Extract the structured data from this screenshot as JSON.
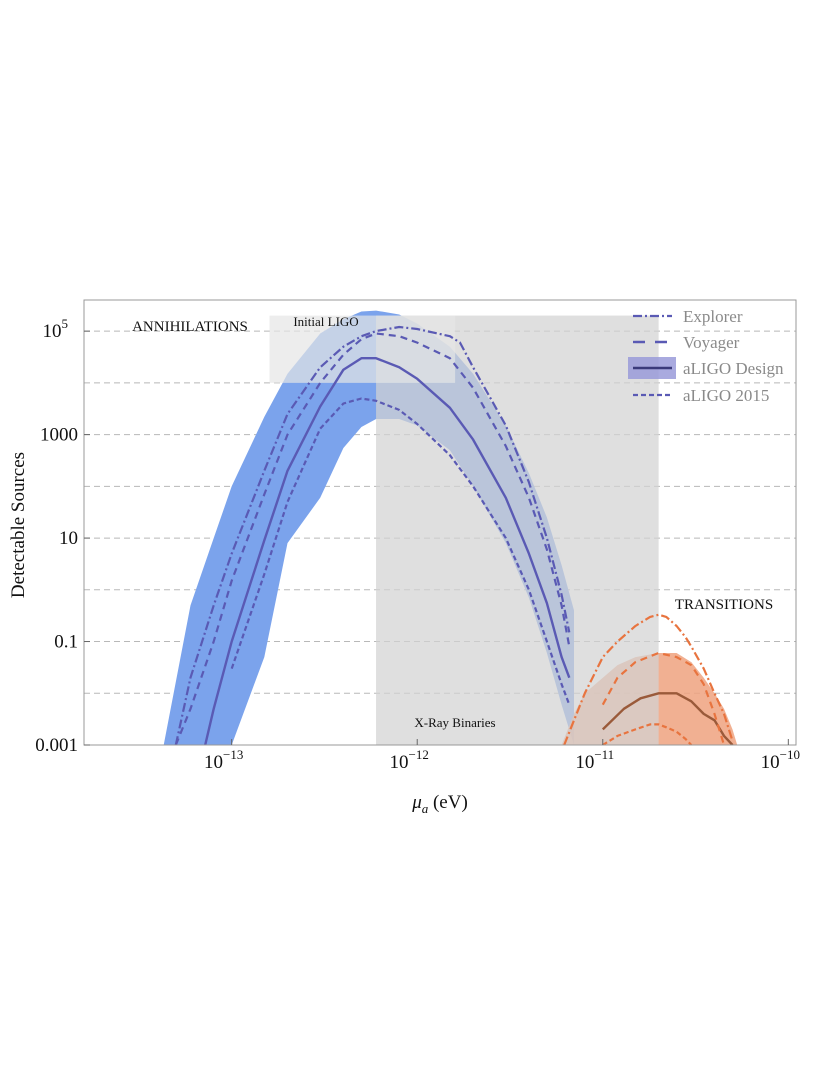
{
  "chart_data": {
    "type": "area",
    "xlabel": "μa (eV)",
    "ylabel": "Detectable Sources",
    "x_scale": "log",
    "y_scale": "log",
    "xlim": [
      1.6e-14,
      1.1e-10
    ],
    "ylim": [
      0.001,
      400000
    ],
    "x_ticks": [
      {
        "value": 1e-13,
        "exp": "−13"
      },
      {
        "value": 1e-12,
        "exp": "−12"
      },
      {
        "value": 1e-11,
        "exp": "−11"
      },
      {
        "value": 1e-10,
        "exp": "−10"
      }
    ],
    "y_ticks": [
      {
        "value": 0.001,
        "label": "0.001"
      },
      {
        "value": 0.1,
        "label": "0.1"
      },
      {
        "value": 10,
        "label": "10"
      },
      {
        "value": 1000,
        "label": "1000"
      },
      {
        "value": 100000,
        "label": "10",
        "sup": "5"
      }
    ],
    "grid_lines_y": [
      0.001,
      0.01,
      0.1,
      1,
      10,
      100,
      1000,
      10000,
      100000
    ],
    "grid": "horizontal dashed",
    "colors": {
      "annihilation_band": "#7ba3ec",
      "transition_band": "#efa27f",
      "annihilation_line": "#5a5ab4",
      "transition_line": "#e8743f",
      "transition_central": "#9a5a3a",
      "shade": "#d3d3d3"
    },
    "regions": [
      {
        "label": "X-Ray Binaries",
        "x": [
          6e-13,
          2e-11
        ],
        "y": [
          0.001,
          200000
        ]
      },
      {
        "label": "Initial LIGO",
        "x": [
          1.6e-13,
          1.6e-12
        ],
        "y": [
          10000,
          200000
        ]
      }
    ],
    "annotations": [
      {
        "text": "ANNIHILATIONS"
      },
      {
        "text": "TRANSITIONS"
      }
    ],
    "legend": {
      "position": "top-right",
      "entries": [
        {
          "label": "Explorer",
          "style": "dash-dot"
        },
        {
          "label": "Voyager",
          "style": "long-dash"
        },
        {
          "label": "aLIGO Design",
          "style": "band+solid"
        },
        {
          "label": "aLIGO 2015",
          "style": "dashed"
        }
      ]
    },
    "series": [
      {
        "group": "annihilations",
        "kind": "band",
        "x": [
          4.3e-14,
          6e-14,
          8e-14,
          1e-13,
          1.5e-13,
          2e-13,
          3e-13,
          4e-13,
          5e-13,
          6e-13,
          8e-13,
          1e-12,
          1.5e-12,
          2e-12,
          3e-12,
          4e-12,
          5e-12,
          6e-12,
          7e-12
        ],
        "y_low": [
          0.001,
          0.001,
          0.001,
          0.001,
          0.05,
          8,
          60,
          550,
          1400,
          2000,
          2000,
          1500,
          500,
          100,
          8,
          0.7,
          0.06,
          0.006,
          0.001
        ],
        "y_high": [
          0.001,
          0.5,
          10,
          100,
          2200,
          15000,
          90000,
          170000,
          240000,
          250000,
          210000,
          140000,
          50000,
          15000,
          1500,
          180,
          25,
          3,
          0.4
        ]
      },
      {
        "group": "annihilations",
        "kind": "aLIGO Design",
        "x": [
          7.2e-14,
          8e-14,
          1e-13,
          1.5e-13,
          2e-13,
          3e-13,
          4e-13,
          5e-13,
          6e-13,
          8e-13,
          1e-12,
          1.5e-12,
          2e-12,
          3e-12,
          4e-12,
          5e-12,
          6e-12,
          6.6e-12
        ],
        "y": [
          0.001,
          0.005,
          0.1,
          9,
          200,
          3500,
          18000,
          30000,
          30000,
          20000,
          12000,
          3300,
          800,
          60,
          5,
          0.55,
          0.05,
          0.02
        ]
      },
      {
        "group": "annihilations",
        "kind": "aLIGO 2015",
        "x": [
          1e-13,
          1.5e-13,
          2e-13,
          3e-13,
          4e-13,
          5e-13,
          6e-13,
          8e-13,
          1e-12,
          1.5e-12,
          2e-12,
          3e-12,
          4e-12,
          5e-12,
          6e-12,
          6.6e-12
        ],
        "y": [
          0.03,
          2,
          50,
          1300,
          4000,
          5000,
          4500,
          3000,
          1600,
          400,
          100,
          10,
          1,
          0.1,
          0.015,
          0.006
        ]
      },
      {
        "group": "annihilations",
        "kind": "Voyager",
        "x": [
          5e-14,
          6e-14,
          8e-14,
          1e-13,
          1.5e-13,
          2e-13,
          3e-13,
          4e-13,
          5e-13,
          6e-13,
          8e-13,
          1e-12,
          1.5e-12,
          2e-12,
          3e-12,
          4e-12,
          5e-12,
          6e-12,
          6.6e-12
        ],
        "y": [
          0.001,
          0.005,
          0.1,
          1.5,
          70,
          1000,
          10000,
          35000,
          70000,
          90000,
          80000,
          60000,
          30000,
          8000,
          600,
          60,
          6,
          0.5,
          0.08
        ]
      },
      {
        "group": "annihilations",
        "kind": "Explorer",
        "x": [
          5e-14,
          6e-14,
          8e-14,
          1e-13,
          1.5e-13,
          2e-13,
          3e-13,
          4e-13,
          5e-13,
          6e-13,
          8e-13,
          1e-12,
          1.5e-12,
          1.7e-12,
          2e-12,
          3e-12,
          4e-12,
          5e-12,
          6e-12,
          6.6e-12
        ],
        "y": [
          0.001,
          0.02,
          0.5,
          5,
          200,
          2500,
          20000,
          50000,
          80000,
          100000,
          120000,
          110000,
          80000,
          60000,
          20000,
          1500,
          120,
          10,
          0.8,
          0.15
        ]
      },
      {
        "group": "transitions",
        "kind": "band",
        "x": [
          6e-12,
          7e-12,
          8e-12,
          1e-11,
          1.2e-11,
          1.5e-11,
          2e-11,
          2.5e-11,
          3e-11,
          3.5e-11,
          4e-11,
          4.5e-11,
          5e-11,
          5.3e-11
        ],
        "y_low": [
          0.001,
          0.001,
          0.001,
          0.001,
          0.001,
          0.001,
          0.001,
          0.001,
          0.001,
          0.001,
          0.001,
          0.001,
          0.001,
          0.001
        ],
        "y_high": [
          0.001,
          0.004,
          0.01,
          0.02,
          0.035,
          0.05,
          0.06,
          0.06,
          0.04,
          0.02,
          0.01,
          0.005,
          0.002,
          0.001
        ]
      },
      {
        "group": "transitions",
        "kind": "aLIGO Design",
        "x": [
          1e-11,
          1.3e-11,
          1.6e-11,
          2e-11,
          2.5e-11,
          3e-11,
          3.5e-11,
          4e-11,
          4.5e-11,
          5e-11
        ],
        "y": [
          0.002,
          0.005,
          0.008,
          0.01,
          0.01,
          0.007,
          0.004,
          0.003,
          0.0015,
          0.001
        ]
      },
      {
        "group": "transitions",
        "kind": "aLIGO 2015",
        "x": [
          1e-11,
          1.2e-11,
          1.5e-11,
          1.8e-11,
          2e-11,
          2.2e-11,
          2.5e-11,
          2.8e-11,
          3e-11
        ],
        "y": [
          0.001,
          0.0015,
          0.002,
          0.0025,
          0.0025,
          0.0022,
          0.0018,
          0.0013,
          0.001
        ]
      },
      {
        "group": "transitions",
        "kind": "Voyager",
        "x": [
          1e-11,
          1.2e-11,
          1.5e-11,
          2e-11,
          2.5e-11,
          3e-11,
          3.5e-11,
          4e-11,
          4.5e-11
        ],
        "y": [
          0.006,
          0.02,
          0.04,
          0.06,
          0.05,
          0.035,
          0.015,
          0.004,
          0.001
        ]
      },
      {
        "group": "transitions",
        "kind": "Explorer",
        "x": [
          6.2e-12,
          7e-12,
          8e-12,
          1e-11,
          1.2e-11,
          1.5e-11,
          1.8e-11,
          2e-11,
          2.2e-11,
          2.5e-11,
          2.8e-11,
          3e-11,
          3.5e-11,
          4e-11,
          4.5e-11,
          5e-11
        ],
        "y": [
          0.001,
          0.003,
          0.01,
          0.05,
          0.1,
          0.2,
          0.3,
          0.33,
          0.3,
          0.2,
          0.12,
          0.08,
          0.03,
          0.01,
          0.004,
          0.0012
        ]
      }
    ]
  }
}
